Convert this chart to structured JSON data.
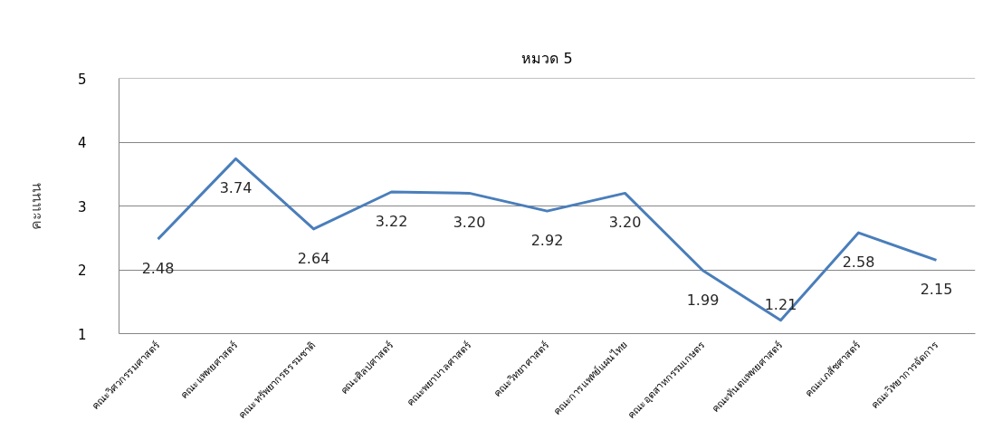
{
  "chart_data": {
    "type": "line",
    "title": "หมวด 5",
    "ylabel": "คะแนน",
    "categories": [
      "คณะวิศวกรรมศาสตร์",
      "คณะแพทยศาสตร์",
      "คณะทรัพยากรธรรมชาติ",
      "คณะศิลปศาสตร์",
      "คณะพยาบาลศาสตร์",
      "คณะวิทยาศาสตร์",
      "คณะการแพทย์แผนไทย",
      "คณะอุตสาหกรรมเกษตร",
      "คณะทันตแพทยศาสตร์",
      "คณะเภสัชศาสตร์",
      "คณะวิทยาการจัดการ"
    ],
    "series": [
      {
        "color": "#4a7ebb",
        "values": [
          2.48,
          3.74,
          2.64,
          3.22,
          3.2,
          2.92,
          3.2,
          1.99,
          1.21,
          2.58,
          2.15
        ],
        "value_labels": [
          "2.48",
          "3.74",
          "2.64",
          "3.22",
          "3.20",
          "2.92",
          "3.20",
          "1.99",
          "1.21",
          "2.58",
          "2.15"
        ]
      }
    ],
    "ylim": [
      1,
      5
    ],
    "yticks": [
      1,
      2,
      3,
      4,
      5
    ],
    "grid": "y",
    "marker": "none",
    "line_style": "solid"
  }
}
